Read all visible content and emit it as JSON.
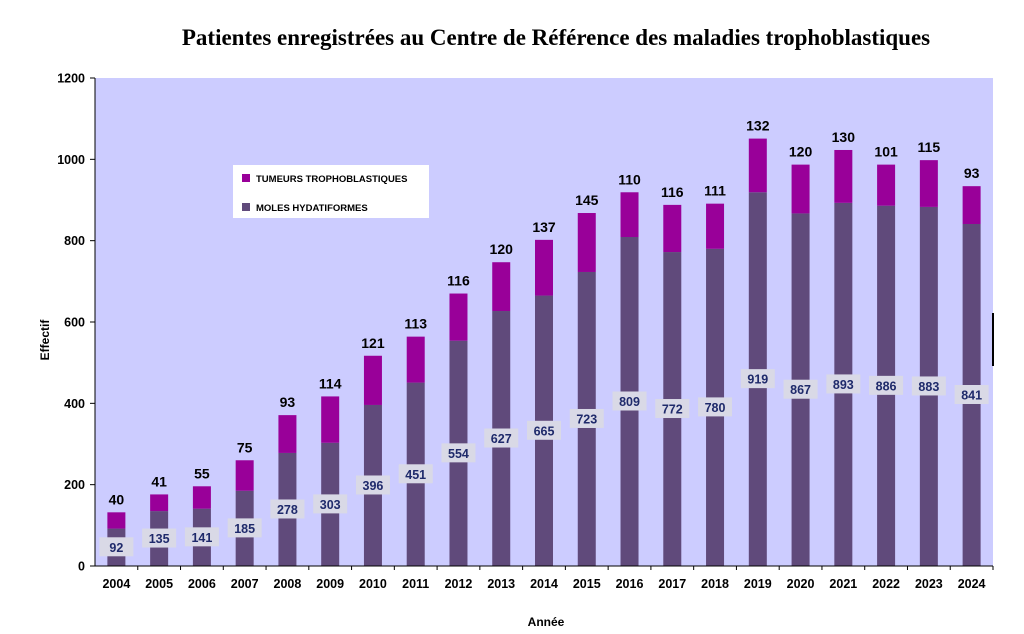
{
  "chart_data": {
    "type": "bar",
    "stacked": true,
    "title": "Patientes enregistrées au Centre de Référence des maladies trophoblastiques",
    "xlabel": "Année",
    "ylabel": "Effectif",
    "ylim": [
      0,
      1200
    ],
    "yticks": [
      "0",
      "200",
      "400",
      "600",
      "800",
      "1000",
      "1200"
    ],
    "grid": false,
    "legend_position": "top-left",
    "categories": [
      "2004",
      "2005",
      "2006",
      "2007",
      "2008",
      "2009",
      "2010",
      "2011",
      "2012",
      "2013",
      "2014",
      "2015",
      "2016",
      "2017",
      "2018",
      "2019",
      "2020",
      "2021",
      "2022",
      "2023",
      "2024"
    ],
    "series": [
      {
        "name": "MOLES HYDATIFORMES",
        "color": "#604a7b",
        "values": [
          92,
          135,
          141,
          185,
          278,
          303,
          396,
          451,
          554,
          627,
          665,
          723,
          809,
          772,
          780,
          919,
          867,
          893,
          886,
          883,
          841
        ]
      },
      {
        "name": "TUMEURS TROPHOBLASTIQUES",
        "color": "#990099",
        "values": [
          40,
          41,
          55,
          75,
          93,
          114,
          121,
          113,
          116,
          120,
          137,
          145,
          110,
          116,
          111,
          132,
          120,
          130,
          101,
          115,
          93
        ]
      }
    ],
    "colors": {
      "plot_background": "#ccccff",
      "label_box": "#d9d9e6"
    }
  }
}
